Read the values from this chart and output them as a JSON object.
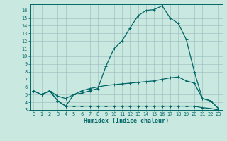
{
  "title": "",
  "xlabel": "Humidex (Indice chaleur)",
  "ylabel": "",
  "background_color": "#c8e8e0",
  "grid_color": "#99bbbb",
  "line_color": "#006666",
  "xlim": [
    -0.5,
    23.5
  ],
  "ylim": [
    3,
    16.8
  ],
  "x_ticks": [
    0,
    1,
    2,
    3,
    4,
    5,
    6,
    7,
    8,
    9,
    10,
    11,
    12,
    13,
    14,
    15,
    16,
    17,
    18,
    19,
    20,
    21,
    22,
    23
  ],
  "y_ticks": [
    3,
    4,
    5,
    6,
    7,
    8,
    9,
    10,
    11,
    12,
    13,
    14,
    15,
    16
  ],
  "line1_x": [
    0,
    1,
    2,
    3,
    4,
    5,
    6,
    7,
    8,
    9,
    10,
    11,
    12,
    13,
    14,
    15,
    16,
    17,
    18,
    19,
    20,
    21,
    22,
    23
  ],
  "line1_y": [
    5.5,
    5.0,
    5.5,
    4.2,
    3.5,
    5.0,
    5.2,
    5.5,
    5.8,
    8.7,
    11.0,
    12.0,
    13.7,
    15.3,
    16.0,
    16.1,
    16.6,
    15.0,
    14.3,
    12.2,
    8.0,
    4.5,
    4.2,
    3.2
  ],
  "line2_x": [
    0,
    1,
    2,
    3,
    4,
    5,
    6,
    7,
    8,
    9,
    10,
    11,
    12,
    13,
    14,
    15,
    16,
    17,
    18,
    19,
    20,
    21,
    22,
    23
  ],
  "line2_y": [
    5.5,
    5.0,
    5.5,
    4.8,
    4.5,
    5.0,
    5.5,
    5.8,
    6.0,
    6.2,
    6.3,
    6.4,
    6.5,
    6.6,
    6.7,
    6.8,
    7.0,
    7.2,
    7.3,
    6.8,
    6.5,
    4.5,
    4.2,
    3.2
  ],
  "line3_x": [
    0,
    1,
    2,
    3,
    4,
    5,
    6,
    7,
    8,
    9,
    10,
    11,
    12,
    13,
    14,
    15,
    16,
    17,
    18,
    19,
    20,
    21,
    22,
    23
  ],
  "line3_y": [
    5.5,
    5.0,
    5.5,
    4.2,
    3.5,
    3.5,
    3.5,
    3.5,
    3.5,
    3.5,
    3.5,
    3.5,
    3.5,
    3.5,
    3.5,
    3.5,
    3.5,
    3.5,
    3.5,
    3.5,
    3.5,
    3.3,
    3.2,
    3.0
  ],
  "lw": 0.9,
  "marker_size": 2.5,
  "tick_fontsize": 4.8,
  "xlabel_fontsize": 6.0
}
